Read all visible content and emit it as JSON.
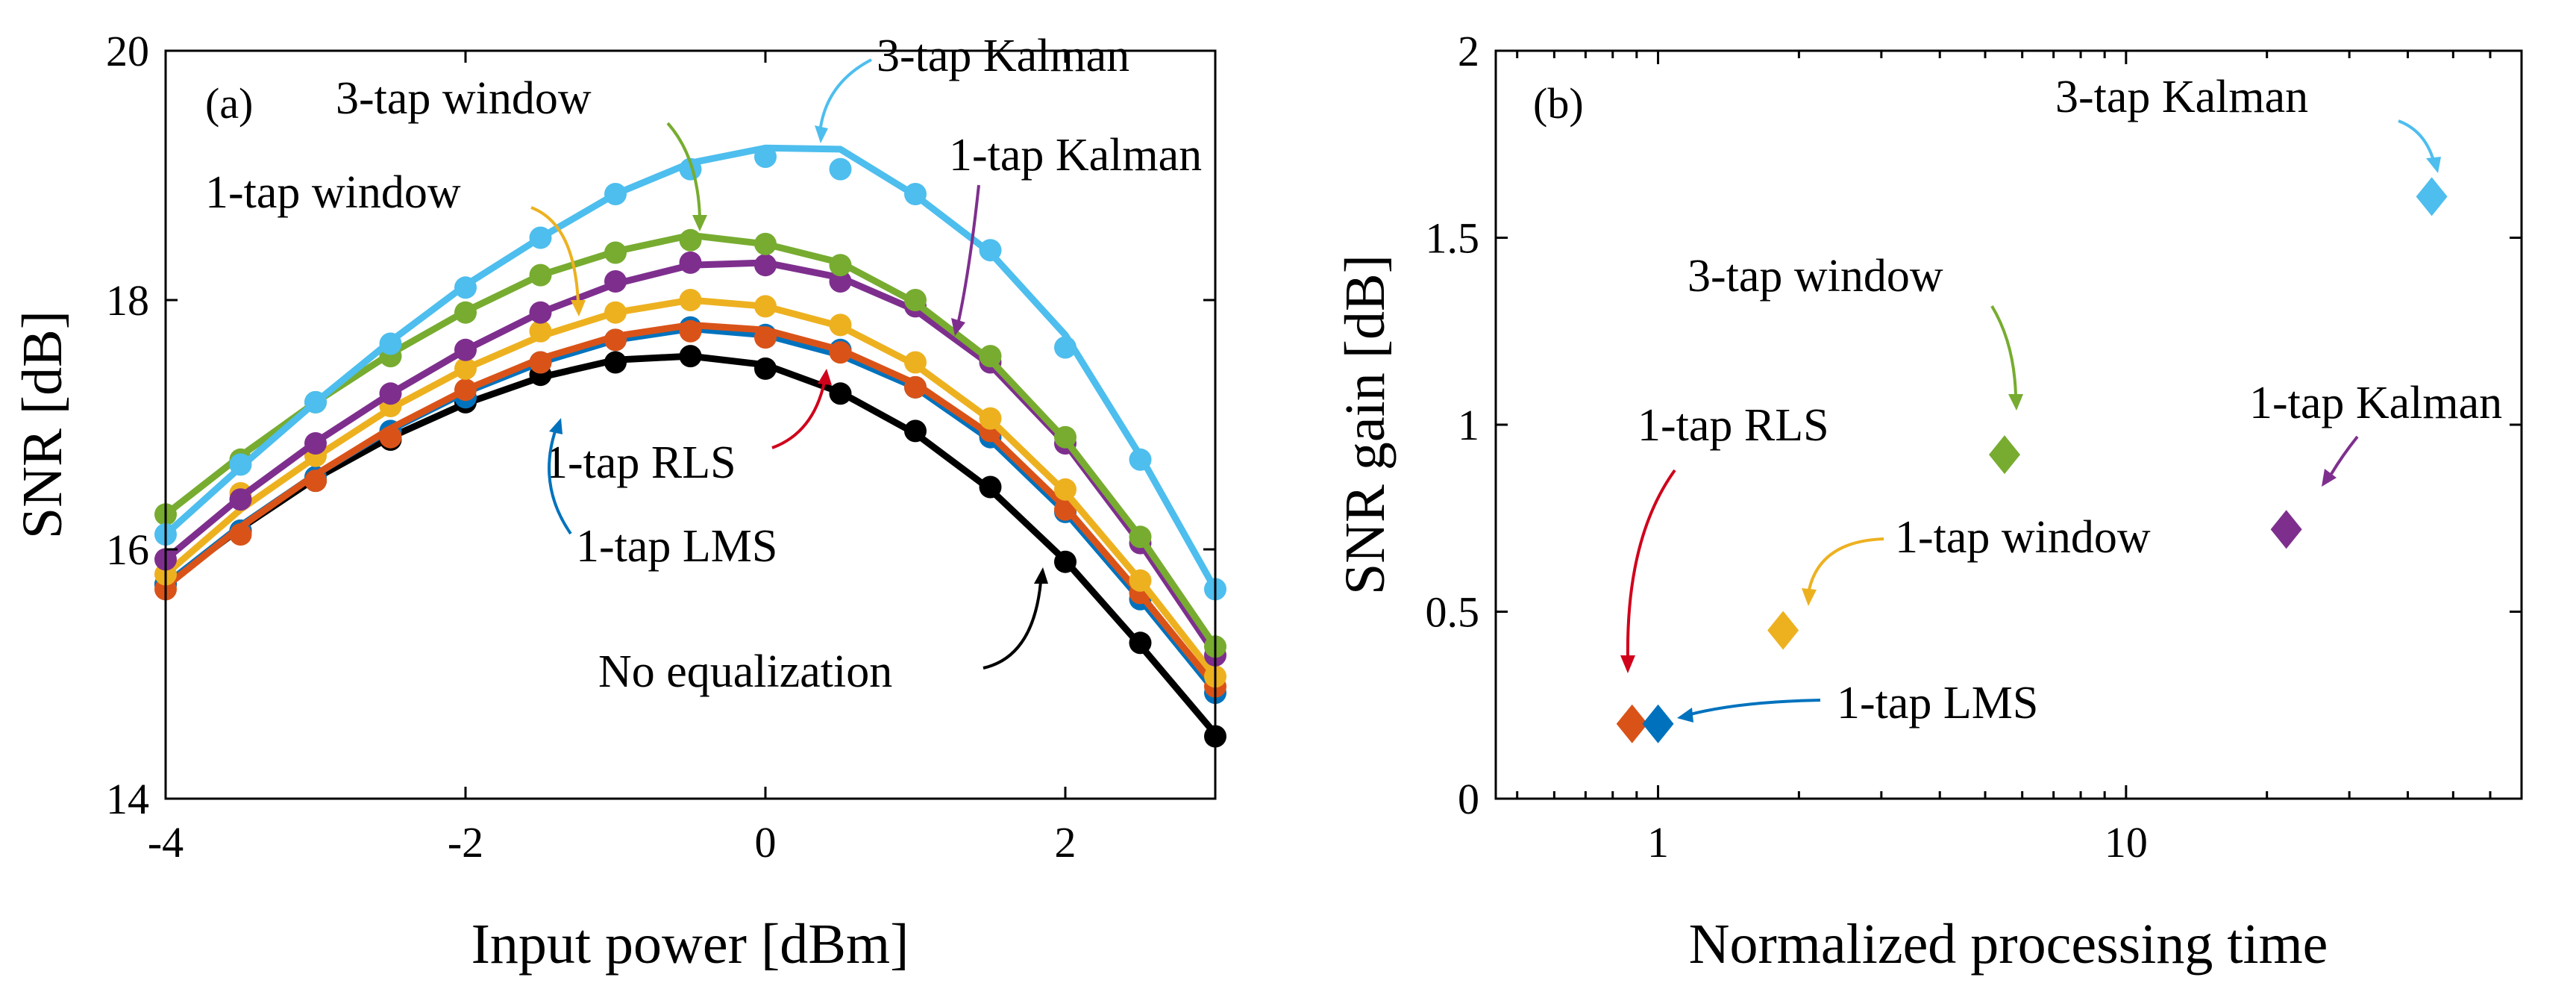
{
  "chart_data": [
    {
      "type": "line",
      "panel_label": "(a)",
      "xlabel": "Input power [dBm]",
      "ylabel": "SNR [dB]",
      "xlim": [
        -4,
        3
      ],
      "ylim": [
        14,
        20
      ],
      "x_ticks": [
        -4,
        -2,
        0,
        2
      ],
      "x_tick_labels": [
        "-4",
        "-2",
        "0",
        "2"
      ],
      "y_ticks": [
        14,
        16,
        18,
        20
      ],
      "y_tick_labels": [
        "14",
        "16",
        "18",
        "20"
      ],
      "grid": false,
      "x": [
        -4,
        -3.5,
        -3,
        -2.5,
        -2,
        -1.5,
        -1,
        -0.5,
        0,
        0.5,
        1,
        1.5,
        2,
        2.5,
        3
      ],
      "series": [
        {
          "name": "No equalization",
          "color": "#000000",
          "markers": [
            15.72,
            16.15,
            16.55,
            16.88,
            17.18,
            17.4,
            17.5,
            17.55,
            17.45,
            17.25,
            16.95,
            16.5,
            15.9,
            15.25,
            14.5
          ],
          "line": [
            15.72,
            16.17,
            16.57,
            16.9,
            17.17,
            17.38,
            17.52,
            17.55,
            17.48,
            17.26,
            16.93,
            16.48,
            15.91,
            15.23,
            14.52
          ]
        },
        {
          "name": "1-tap LMS",
          "color": "#0072BD",
          "markers": [
            15.72,
            16.15,
            16.58,
            16.95,
            17.22,
            17.5,
            17.68,
            17.78,
            17.72,
            17.6,
            17.3,
            16.9,
            16.3,
            15.6,
            14.85
          ],
          "line": [
            15.72,
            16.19,
            16.6,
            16.96,
            17.26,
            17.5,
            17.68,
            17.77,
            17.72,
            17.56,
            17.3,
            16.88,
            16.3,
            15.6,
            14.86
          ]
        },
        {
          "name": "1-tap RLS",
          "color": "#D95319",
          "markers": [
            15.68,
            16.12,
            16.55,
            16.9,
            17.28,
            17.5,
            17.68,
            17.75,
            17.7,
            17.58,
            17.3,
            16.95,
            16.32,
            15.65,
            14.9
          ],
          "line": [
            15.7,
            16.18,
            16.6,
            16.97,
            17.28,
            17.53,
            17.71,
            17.8,
            17.76,
            17.6,
            17.33,
            16.92,
            16.34,
            15.64,
            14.9
          ]
        },
        {
          "name": "1-tap window",
          "color": "#EDB120",
          "markers": [
            15.8,
            16.45,
            16.75,
            17.15,
            17.45,
            17.75,
            17.9,
            18.0,
            17.95,
            17.8,
            17.5,
            17.05,
            16.48,
            15.75,
            14.98
          ],
          "line": [
            15.8,
            16.32,
            16.74,
            17.13,
            17.45,
            17.71,
            17.9,
            18.0,
            17.95,
            17.79,
            17.48,
            17.04,
            16.46,
            15.75,
            14.98
          ]
        },
        {
          "name": "1-tap Kalman",
          "color": "#7E2F8E",
          "markers": [
            15.92,
            16.4,
            16.85,
            17.25,
            17.6,
            17.9,
            18.15,
            18.3,
            18.28,
            18.15,
            17.95,
            17.5,
            16.85,
            16.05,
            15.15
          ],
          "line": [
            15.92,
            16.42,
            16.86,
            17.25,
            17.6,
            17.9,
            18.13,
            18.28,
            18.3,
            18.18,
            17.92,
            17.48,
            16.85,
            16.05,
            15.16
          ]
        },
        {
          "name": "3-tap window",
          "color": "#77AC30",
          "markers": [
            16.28,
            16.72,
            17.18,
            17.55,
            17.9,
            18.2,
            18.38,
            18.48,
            18.45,
            18.28,
            18.0,
            17.55,
            16.9,
            16.1,
            15.22
          ],
          "line": [
            16.28,
            16.75,
            17.18,
            17.57,
            17.91,
            18.2,
            18.39,
            18.52,
            18.45,
            18.3,
            17.98,
            17.52,
            16.88,
            16.1,
            15.22
          ]
        },
        {
          "name": "3-tap Kalman",
          "color": "#4DBEEE",
          "markers": [
            16.12,
            16.68,
            17.18,
            17.65,
            18.1,
            18.5,
            18.85,
            19.05,
            19.15,
            19.05,
            18.85,
            18.4,
            17.62,
            16.72,
            15.68
          ],
          "line": [
            16.12,
            16.66,
            17.18,
            17.67,
            18.12,
            18.5,
            18.85,
            19.1,
            19.22,
            19.21,
            18.84,
            18.38,
            17.72,
            16.75,
            15.68
          ]
        }
      ],
      "annotations": [
        "3-tap Kalman",
        "3-tap window",
        "1-tap Kalman",
        "1-tap window",
        "1-tap RLS",
        "1-tap LMS",
        "No equalization"
      ]
    },
    {
      "type": "scatter",
      "panel_label": "(b)",
      "xlabel": "Normalized processing time",
      "ylabel": "SNR gain [dB]",
      "xscale": "log",
      "xlim": [
        0.45,
        70
      ],
      "ylim": [
        0,
        2
      ],
      "x_ticks": [
        1,
        10
      ],
      "x_tick_labels": [
        "1",
        "10"
      ],
      "y_ticks": [
        0,
        0.5,
        1,
        1.5,
        2
      ],
      "y_tick_labels": [
        "0",
        "0.5",
        "1",
        "1.5",
        "2"
      ],
      "grid": false,
      "points": [
        {
          "name": "1-tap RLS",
          "x": 0.88,
          "y": 0.2,
          "color": "#D95319"
        },
        {
          "name": "1-tap LMS",
          "x": 1.0,
          "y": 0.2,
          "color": "#0072BD"
        },
        {
          "name": "1-tap window",
          "x": 1.85,
          "y": 0.45,
          "color": "#EDB120"
        },
        {
          "name": "3-tap window",
          "x": 5.5,
          "y": 0.92,
          "color": "#77AC30"
        },
        {
          "name": "1-tap Kalman",
          "x": 22,
          "y": 0.72,
          "color": "#7E2F8E"
        },
        {
          "name": "3-tap Kalman",
          "x": 45,
          "y": 1.61,
          "color": "#4DBEEE"
        }
      ]
    }
  ]
}
